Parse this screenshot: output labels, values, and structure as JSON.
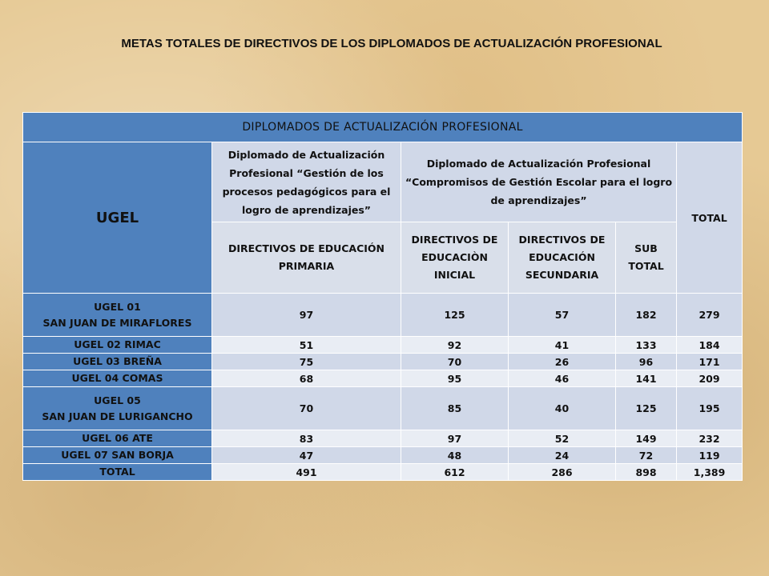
{
  "title": "METAS TOTALES DE DIRECTIVOS DE LOS DIPLOMADOS DE ACTUALIZACIÓN PROFESIONAL",
  "table": {
    "banner": "DIPLOMADOS  DE  ACTUALIZACIÓN  PROFESIONAL",
    "ugel_header": "UGEL",
    "total_header": "TOTAL",
    "diploma1": "Diplomado de Actualización Profesional “Gestión de los procesos pedagógicos para el logro de aprendizajes”",
    "diploma2": "Diplomado de Actualización Profesional “Compromisos de Gestión Escolar para el logro de aprendizajes”",
    "sub_headers": [
      "DIRECTIVOS DE EDUCACIÓN PRIMARIA",
      "DIRECTIVOS DE EDUCACIÒN INICIAL",
      "DIRECTIVOS DE EDUCACIÓN SECUNDARIA",
      "SUB TOTAL"
    ],
    "rows": [
      {
        "ugel": [
          "UGEL 01",
          "SAN JUAN DE MIRAFLORES"
        ],
        "values": [
          "97",
          "125",
          "57",
          "182",
          "279"
        ]
      },
      {
        "ugel": [
          "UGEL 02   RIMAC"
        ],
        "values": [
          "51",
          "92",
          "41",
          "133",
          "184"
        ]
      },
      {
        "ugel": [
          "UGEL 03   BREÑA"
        ],
        "values": [
          "75",
          "70",
          "26",
          "96",
          "171"
        ]
      },
      {
        "ugel": [
          "UGEL 04    COMAS"
        ],
        "values": [
          "68",
          "95",
          "46",
          "141",
          "209"
        ]
      },
      {
        "ugel": [
          "UGEL 05",
          "SAN JUAN DE LURIGANCHO"
        ],
        "values": [
          "70",
          "85",
          "40",
          "125",
          "195"
        ]
      },
      {
        "ugel": [
          "UGEL 06   ATE"
        ],
        "values": [
          "83",
          "97",
          "52",
          "149",
          "232"
        ]
      },
      {
        "ugel": [
          "UGEL 07    SAN BORJA"
        ],
        "values": [
          "47",
          "48",
          "24",
          "72",
          "119"
        ]
      },
      {
        "ugel": [
          "TOTAL"
        ],
        "values": [
          "491",
          "612",
          "286",
          "898",
          "1,389"
        ]
      }
    ]
  }
}
